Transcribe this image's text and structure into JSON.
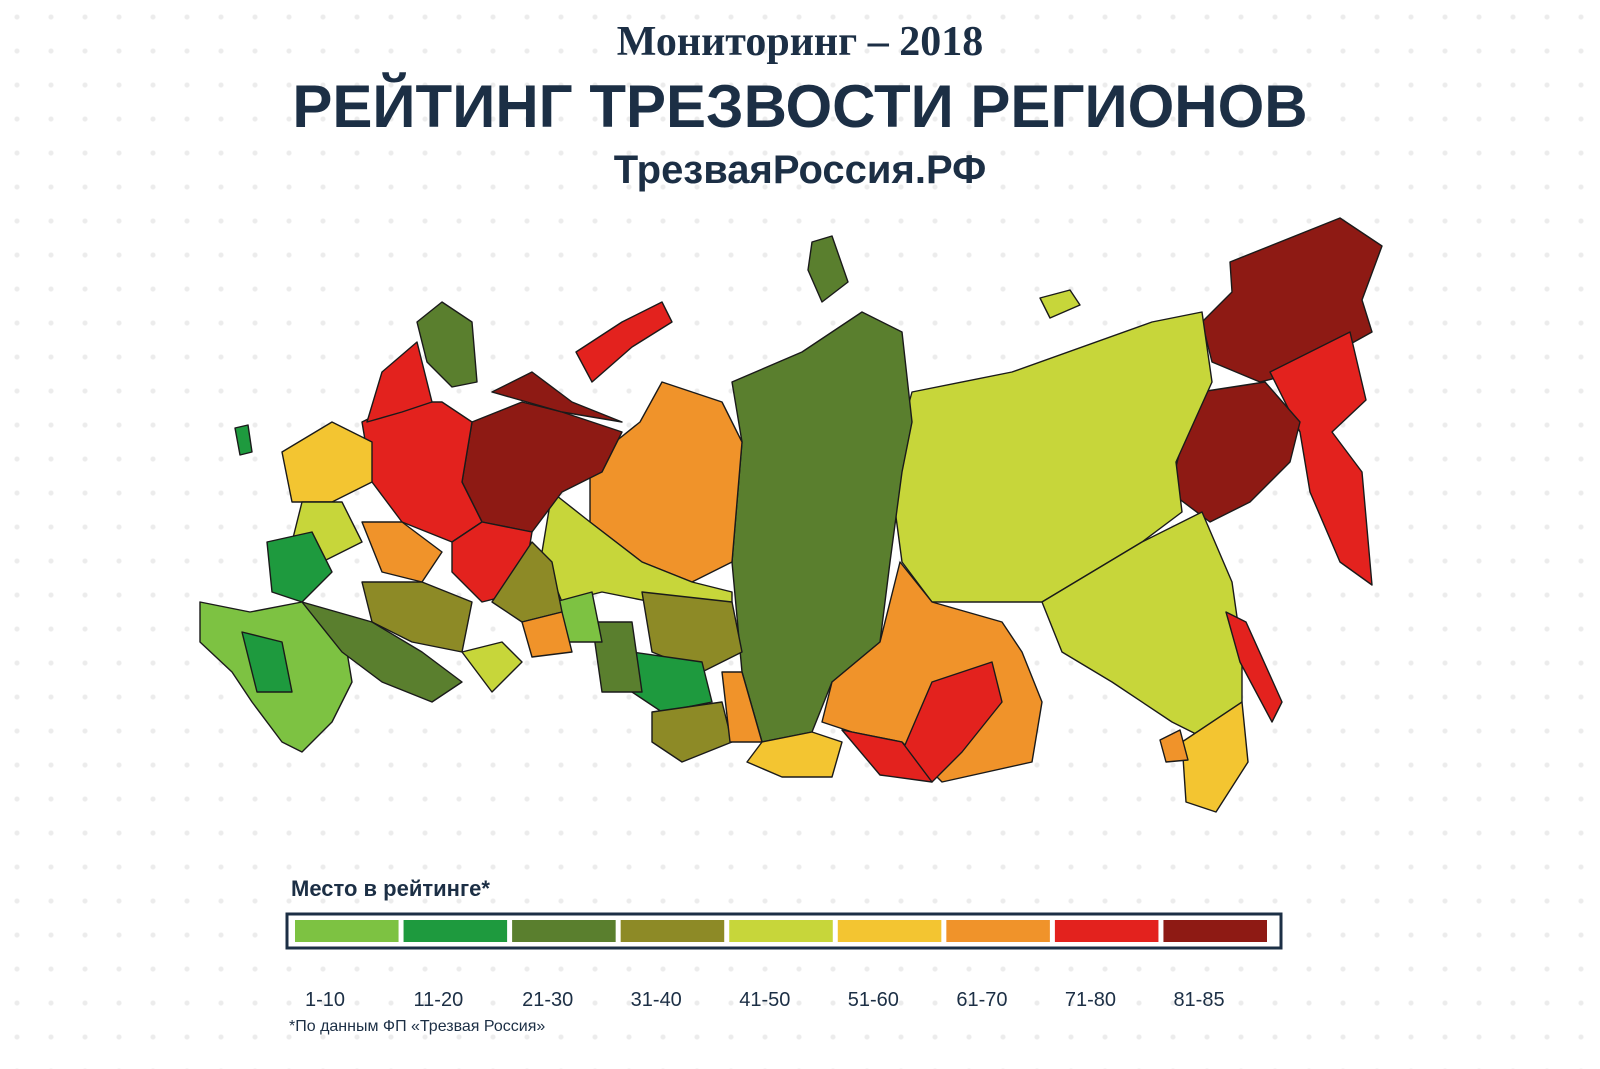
{
  "header": {
    "subtitle": "Мониторинг – 2018",
    "title": "РЕЙТИНГ ТРЕЗВОСТИ РЕГИОНОВ",
    "site": "ТрезваяРоссия.РФ"
  },
  "legend": {
    "title": "Место в рейтинге*",
    "items": [
      {
        "label": "1-10",
        "color": "#7dc242"
      },
      {
        "label": "11-20",
        "color": "#1e9a3e"
      },
      {
        "label": "21-30",
        "color": "#5a7f2e"
      },
      {
        "label": "31-40",
        "color": "#8d8a26"
      },
      {
        "label": "41-50",
        "color": "#c7d63a"
      },
      {
        "label": "51-60",
        "color": "#f3c531"
      },
      {
        "label": "61-70",
        "color": "#f0932a"
      },
      {
        "label": "71-80",
        "color": "#e3221e"
      },
      {
        "label": "81-85",
        "color": "#8e1a14"
      }
    ]
  },
  "footnote": "*По данным ФП «Трезвая Россия»"
}
